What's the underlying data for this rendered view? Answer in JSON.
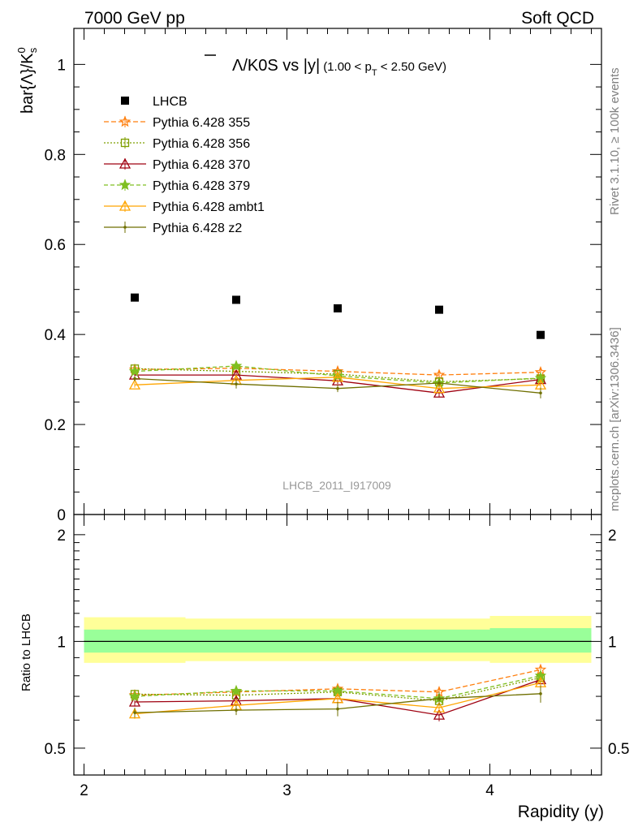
{
  "header": {
    "left": "7000 GeV pp",
    "right": "Soft QCD"
  },
  "title": {
    "main": "Λ/K0S vs |y|",
    "lambda_glyph": "Λ",
    "rest": "/K0S vs |y|",
    "range_prefix": "(1.00 < p",
    "range_sub": "T",
    "range_suffix": " < 2.50 GeV)"
  },
  "ylabel_top": {
    "base": "bar{Λ}/K",
    "sup": "0",
    "sub": "s"
  },
  "ylabel_bottom": "Ratio to LHCB",
  "xlabel": "Rapidity (y)",
  "side_right_top": "Rivet 3.1.10, ≥ 100k events",
  "side_right_bottom": "mcplots.cern.ch [arXiv:1306.3436]",
  "watermark": "LHCB_2011_I917009",
  "colors": {
    "data": "#000000",
    "p355": "#ff7f0e",
    "p356": "#7f9f00",
    "p370": "#9f0010",
    "p379": "#7fbf20",
    "ambt1": "#ffa500",
    "z2": "#6f6f00",
    "band_inner": "#99ff99",
    "band_outer": "#ffff99"
  },
  "chart_data": [
    {
      "type": "scatter",
      "panel": "main",
      "x": [
        2.25,
        2.75,
        3.25,
        3.75,
        4.25
      ],
      "x_bins": [
        [
          2.0,
          2.5
        ],
        [
          2.5,
          3.0
        ],
        [
          3.0,
          3.5
        ],
        [
          3.5,
          4.0
        ],
        [
          4.0,
          4.5
        ]
      ],
      "xlim": [
        1.95,
        4.55
      ],
      "ylim": [
        0,
        1.08
      ],
      "yticks": [
        "0",
        "0.2",
        "0.4",
        "0.6",
        "0.8",
        "1"
      ],
      "ytick_values": [
        0,
        0.2,
        0.4,
        0.6,
        0.8,
        1.0
      ],
      "xticks": [
        "2",
        "3",
        "4"
      ],
      "xtick_values": [
        2,
        3,
        4
      ],
      "legend_position": "top-left",
      "series": [
        {
          "name": "LHCB",
          "key": "data",
          "marker": "square",
          "dash": "none",
          "values": [
            0.482,
            0.477,
            0.458,
            0.455,
            0.399
          ],
          "errors": [
            0.004,
            0.004,
            0.004,
            0.004,
            0.004
          ]
        },
        {
          "name": "Pythia 6.428 355",
          "key": "p355",
          "marker": "star-open",
          "dash": "6,3",
          "values": [
            0.322,
            0.325,
            0.318,
            0.31,
            0.316
          ],
          "errors": [
            0.006,
            0.008,
            0.007,
            0.01,
            0.012
          ]
        },
        {
          "name": "Pythia 6.428 356",
          "key": "p356",
          "marker": "square-open",
          "dash": "2,2",
          "values": [
            0.324,
            0.318,
            0.312,
            0.295,
            0.302
          ],
          "errors": [
            0.006,
            0.008,
            0.007,
            0.01,
            0.012
          ]
        },
        {
          "name": "Pythia 6.428 370",
          "key": "p370",
          "marker": "triangle-open",
          "dash": "none",
          "values": [
            0.31,
            0.31,
            0.297,
            0.27,
            0.3
          ],
          "errors": [
            0.006,
            0.008,
            0.007,
            0.01,
            0.012
          ]
        },
        {
          "name": "Pythia 6.428 379",
          "key": "p379",
          "marker": "star",
          "dash": "5,3",
          "values": [
            0.318,
            0.33,
            0.308,
            0.292,
            0.303
          ],
          "errors": [
            0.006,
            0.008,
            0.007,
            0.01,
            0.012
          ]
        },
        {
          "name": "Pythia 6.428 ambt1",
          "key": "ambt1",
          "marker": "triangle-open",
          "dash": "none",
          "values": [
            0.288,
            0.298,
            0.305,
            0.28,
            0.288
          ],
          "errors": [
            0.006,
            0.008,
            0.007,
            0.01,
            0.012
          ]
        },
        {
          "name": "Pythia 6.428 z2",
          "key": "z2",
          "marker": "dot",
          "dash": "none",
          "values": [
            0.302,
            0.29,
            0.28,
            0.292,
            0.27
          ],
          "errors": [
            0.006,
            0.01,
            0.008,
            0.01,
            0.012
          ]
        }
      ]
    },
    {
      "type": "scatter",
      "panel": "ratio",
      "x": [
        2.25,
        2.75,
        3.25,
        3.75,
        4.25
      ],
      "x_bins": [
        [
          2.0,
          2.5
        ],
        [
          2.5,
          3.0
        ],
        [
          3.0,
          3.5
        ],
        [
          3.5,
          4.0
        ],
        [
          4.0,
          4.5
        ]
      ],
      "xlim": [
        1.95,
        4.55
      ],
      "ylim": [
        0.42,
        2.28
      ],
      "log_y": true,
      "yticks": [
        "0.5",
        "1",
        "2"
      ],
      "ytick_values": [
        0.5,
        1,
        2
      ],
      "xticks": [
        "2",
        "3",
        "4"
      ],
      "xtick_values": [
        2,
        3,
        4
      ],
      "band_inner": [
        [
          0.93,
          1.08
        ],
        [
          0.93,
          1.08
        ],
        [
          0.93,
          1.08
        ],
        [
          0.93,
          1.08
        ],
        [
          0.93,
          1.09
        ]
      ],
      "band_outer": [
        [
          0.87,
          1.17
        ],
        [
          0.88,
          1.16
        ],
        [
          0.88,
          1.16
        ],
        [
          0.88,
          1.16
        ],
        [
          0.87,
          1.18
        ]
      ],
      "series": [
        {
          "key": "p355",
          "marker": "star-open",
          "dash": "6,3",
          "values": [
            0.705,
            0.72,
            0.735,
            0.72,
            0.832
          ],
          "errors": [
            0.02,
            0.02,
            0.02,
            0.025,
            0.03
          ]
        },
        {
          "key": "p356",
          "marker": "square-open",
          "dash": "2,2",
          "values": [
            0.71,
            0.705,
            0.72,
            0.68,
            0.79
          ],
          "errors": [
            0.02,
            0.02,
            0.02,
            0.025,
            0.03
          ]
        },
        {
          "key": "p370",
          "marker": "triangle-open",
          "dash": "none",
          "values": [
            0.675,
            0.68,
            0.69,
            0.62,
            0.78
          ],
          "errors": [
            0.02,
            0.02,
            0.02,
            0.025,
            0.03
          ]
        },
        {
          "key": "p379",
          "marker": "star",
          "dash": "5,3",
          "values": [
            0.7,
            0.725,
            0.725,
            0.69,
            0.8
          ],
          "errors": [
            0.02,
            0.02,
            0.02,
            0.025,
            0.03
          ]
        },
        {
          "key": "ambt1",
          "marker": "triangle-open",
          "dash": "none",
          "values": [
            0.625,
            0.66,
            0.69,
            0.65,
            0.765
          ],
          "errors": [
            0.02,
            0.02,
            0.02,
            0.025,
            0.03
          ]
        },
        {
          "key": "z2",
          "marker": "dot",
          "dash": "none",
          "values": [
            0.63,
            0.64,
            0.645,
            0.69,
            0.712
          ],
          "errors": [
            0.02,
            0.02,
            0.03,
            0.03,
            0.04
          ]
        }
      ]
    }
  ]
}
